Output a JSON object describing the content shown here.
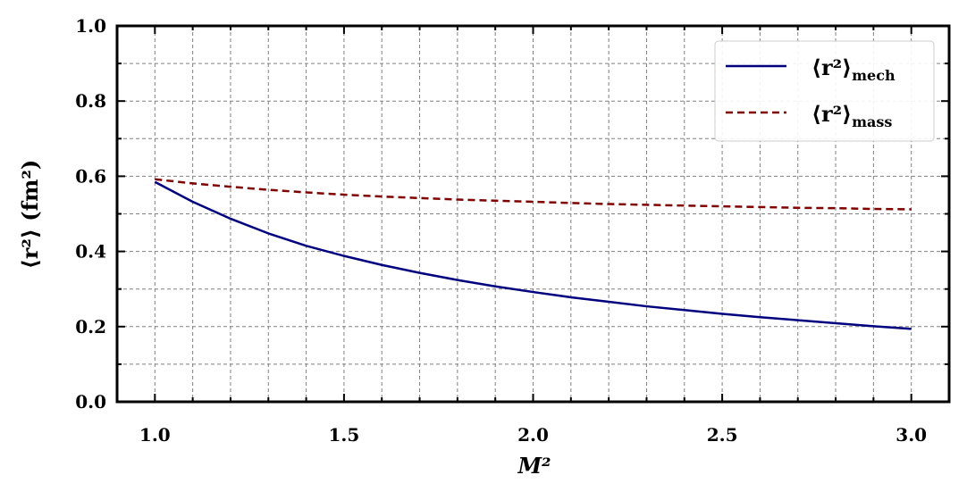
{
  "chart_data": {
    "type": "line",
    "xlabel": "M²",
    "ylabel": "⟨r²⟩ (fm²)",
    "xlim": [
      0.9,
      3.1
    ],
    "ylim": [
      0.0,
      1.0
    ],
    "x_ticks": [
      "1.0",
      "1.5",
      "2.0",
      "2.5",
      "3.0"
    ],
    "y_ticks": [
      "0.0",
      "0.2",
      "0.4",
      "0.6",
      "0.8",
      "1.0"
    ],
    "grid": true,
    "legend_position": "top-right",
    "series": [
      {
        "name": "⟨r²⟩",
        "subscript": "mech",
        "color": "#00007f",
        "dash": "solid",
        "x": [
          1.0,
          1.1,
          1.2,
          1.3,
          1.4,
          1.5,
          1.6,
          1.7,
          1.8,
          1.9,
          2.0,
          2.1,
          2.2,
          2.3,
          2.4,
          2.5,
          2.6,
          2.7,
          2.8,
          2.9,
          3.0
        ],
        "y": [
          0.585,
          0.532,
          0.487,
          0.448,
          0.415,
          0.388,
          0.364,
          0.343,
          0.324,
          0.307,
          0.292,
          0.278,
          0.266,
          0.254,
          0.244,
          0.234,
          0.225,
          0.217,
          0.209,
          0.201,
          0.194
        ]
      },
      {
        "name": "⟨r²⟩",
        "subscript": "mass",
        "color": "#7f0000",
        "dash": "dashed",
        "x": [
          1.0,
          1.1,
          1.2,
          1.3,
          1.4,
          1.5,
          1.6,
          1.7,
          1.8,
          1.9,
          2.0,
          2.1,
          2.2,
          2.3,
          2.4,
          2.5,
          2.6,
          2.7,
          2.8,
          2.9,
          3.0
        ],
        "y": [
          0.592,
          0.581,
          0.572,
          0.564,
          0.557,
          0.551,
          0.546,
          0.542,
          0.538,
          0.535,
          0.532,
          0.529,
          0.526,
          0.524,
          0.522,
          0.52,
          0.518,
          0.516,
          0.515,
          0.513,
          0.512
        ]
      }
    ]
  }
}
